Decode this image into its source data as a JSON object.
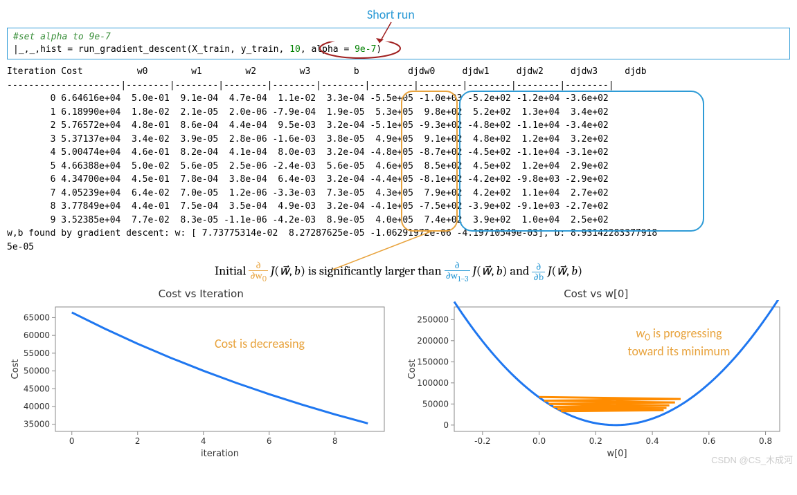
{
  "annotation_top": "Short run",
  "code": {
    "comment": "#set alpha to 9e-7",
    "line_pre": "|_,_,hist = run_gradient_descent(X_train, y_train, ",
    "iters": "10",
    "mid": ", alpha ",
    "eq": "=",
    "val": " 9e-7",
    "close": ")"
  },
  "table": {
    "header": "Iteration Cost          w0        w1        w2        w3        b         djdw0     djdw1     djdw2     djdw3     djdb   ",
    "sep": "---------------------|--------|--------|--------|--------|--------|--------|--------|--------|--------|--------|",
    "rows": [
      "        0 6.64616e+04  5.0e-01  9.1e-04  4.7e-04  1.1e-02  3.3e-04 -5.5e+05 -1.0e+03 -5.2e+02 -1.2e+04 -3.6e+02",
      "        1 6.18990e+04  1.8e-02  2.1e-05  2.0e-06 -7.9e-04  1.9e-05  5.3e+05  9.8e+02  5.2e+02  1.3e+04  3.4e+02",
      "        2 5.76572e+04  4.8e-01  8.6e-04  4.4e-04  9.5e-03  3.2e-04 -5.1e+05 -9.3e+02 -4.8e+02 -1.1e+04 -3.4e+02",
      "        3 5.37137e+04  3.4e-02  3.9e-05  2.8e-06 -1.6e-03  3.8e-05  4.9e+05  9.1e+02  4.8e+02  1.2e+04  3.2e+02",
      "        4 5.00474e+04  4.6e-01  8.2e-04  4.1e-04  8.0e-03  3.2e-04 -4.8e+05 -8.7e+02 -4.5e+02 -1.1e+04 -3.1e+02",
      "        5 4.66388e+04  5.0e-02  5.6e-05  2.5e-06 -2.4e-03  5.6e-05  4.6e+05  8.5e+02  4.5e+02  1.2e+04  2.9e+02",
      "        6 4.34700e+04  4.5e-01  7.8e-04  3.8e-04  6.4e-03  3.2e-04 -4.4e+05 -8.1e+02 -4.2e+02 -9.8e+03 -2.9e+02",
      "        7 4.05239e+04  6.4e-02  7.0e-05  1.2e-06 -3.3e-03  7.3e-05  4.3e+05  7.9e+02  4.2e+02  1.1e+04  2.7e+02",
      "        8 3.77849e+04  4.4e-01  7.5e-04  3.5e-04  4.9e-03  3.2e-04 -4.1e+05 -7.5e+02 -3.9e+02 -9.1e+03 -2.7e+02",
      "        9 3.52385e+04  7.7e-02  8.3e-05 -1.1e-06 -4.2e-03  8.9e-05  4.0e+05  7.4e+02  3.9e+02  1.0e+04  2.5e+02"
    ],
    "footer1": "w,b found by gradient descent: w: [ 7.73775314e-02  8.27287625e-05 -1.06291972e-06 -4.19710549e-03], b: 8.93142283377918",
    "footer2": "5e-05"
  },
  "math": {
    "pre": "Initial ",
    "f1_top": "∂",
    "f1_bot": "∂w₀",
    "mid1": "J(w⃗, b) is significantly larger than ",
    "f2_top": "∂",
    "f2_bot": "∂w₁₋₃",
    "mid2": "J(w⃗, b) and ",
    "f3_top": "∂",
    "f3_bot": "∂b",
    "mid3": "J(w⃗, b)"
  },
  "chart1": {
    "title": "Cost vs Iteration",
    "xlabel": "iteration",
    "ylabel": "Cost",
    "overlay": "Cost is decreasing",
    "xlim": [
      -0.5,
      9.5
    ],
    "xtick_step": 2,
    "xtick_start": 0,
    "ylim": [
      33000,
      68000
    ],
    "yticks": [
      35000,
      40000,
      45000,
      50000,
      55000,
      60000,
      65000
    ],
    "data_x": [
      0,
      1,
      2,
      3,
      4,
      5,
      6,
      7,
      8,
      9
    ],
    "data_y": [
      66461,
      61899,
      57657,
      53714,
      50047,
      46639,
      43470,
      40524,
      37785,
      35239
    ],
    "line_color": "#1f77f0",
    "background": "#ffffff"
  },
  "chart2": {
    "title": "Cost vs w[0]",
    "xlabel": "w[0]",
    "ylabel": "Cost",
    "overlay1": "w₀  is  progressing",
    "overlay2": "toward its minimum",
    "xlim": [
      -0.3,
      0.85
    ],
    "xticks": [
      -0.2,
      0.0,
      0.2,
      0.4,
      0.6,
      0.8
    ],
    "ylim": [
      -15000,
      280000
    ],
    "yticks": [
      0,
      50000,
      100000,
      150000,
      200000,
      250000
    ],
    "parabola_color": "#1f77f0",
    "trace_color": "#ff8c00",
    "parabola_vertex_x": 0.27,
    "parabola_vertex_y": 0,
    "parabola_scale": 900000,
    "trace_x": [
      0.0,
      0.5,
      0.018,
      0.48,
      0.034,
      0.46,
      0.05,
      0.45,
      0.064,
      0.44,
      0.077
    ],
    "trace_y": [
      66461,
      61899,
      57657,
      53714,
      50047,
      46639,
      43470,
      40524,
      37785,
      35239,
      33000
    ],
    "background": "#ffffff"
  },
  "watermark": "CSDN @CS_木成河",
  "colors": {
    "accent_blue": "#2e9bd6",
    "accent_orange": "#e8a33d",
    "dark_red": "#a02020"
  }
}
